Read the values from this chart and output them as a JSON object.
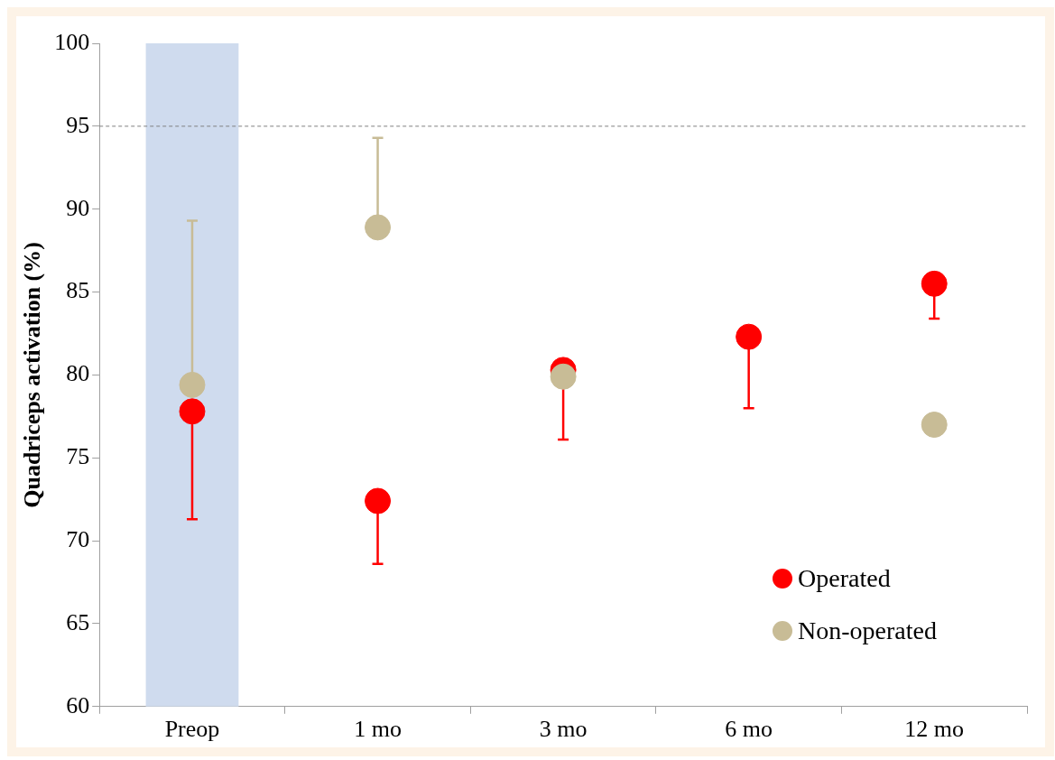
{
  "chart_data": {
    "type": "scatter",
    "ylabel": "Quadriceps activation (%)",
    "categories": [
      "Preop",
      "1 mo",
      "3 mo",
      "6 mo",
      "12 mo"
    ],
    "ylim": [
      60,
      100
    ],
    "yticks": [
      60,
      65,
      70,
      75,
      80,
      85,
      90,
      95,
      100
    ],
    "grid": false,
    "legend": "bottom right",
    "marker": "circle",
    "series": [
      {
        "name": "Operated",
        "color": "#ff0000",
        "values": [
          77.8,
          72.4,
          80.3,
          82.3,
          85.5
        ],
        "errors": [
          [
            71.3,
            77.8
          ],
          [
            68.6,
            72.4
          ],
          [
            76.1,
            80.3
          ],
          [
            78.0,
            82.3
          ],
          [
            83.4,
            85.5
          ]
        ]
      },
      {
        "name": "Non-operated",
        "color": "#c8bc96",
        "values": [
          79.4,
          88.9,
          79.9,
          null,
          77.0
        ],
        "errors": [
          [
            79.4,
            89.3
          ],
          [
            88.9,
            94.3
          ],
          null,
          null,
          null
        ]
      }
    ],
    "ref_lines": [
      {
        "axis": "y",
        "value": 95,
        "color": "#808080",
        "line_style": "dashed"
      }
    ],
    "bands": [
      {
        "axis": "x",
        "from": "Preop",
        "to": "Preop",
        "color": "#cfdbee"
      }
    ]
  }
}
